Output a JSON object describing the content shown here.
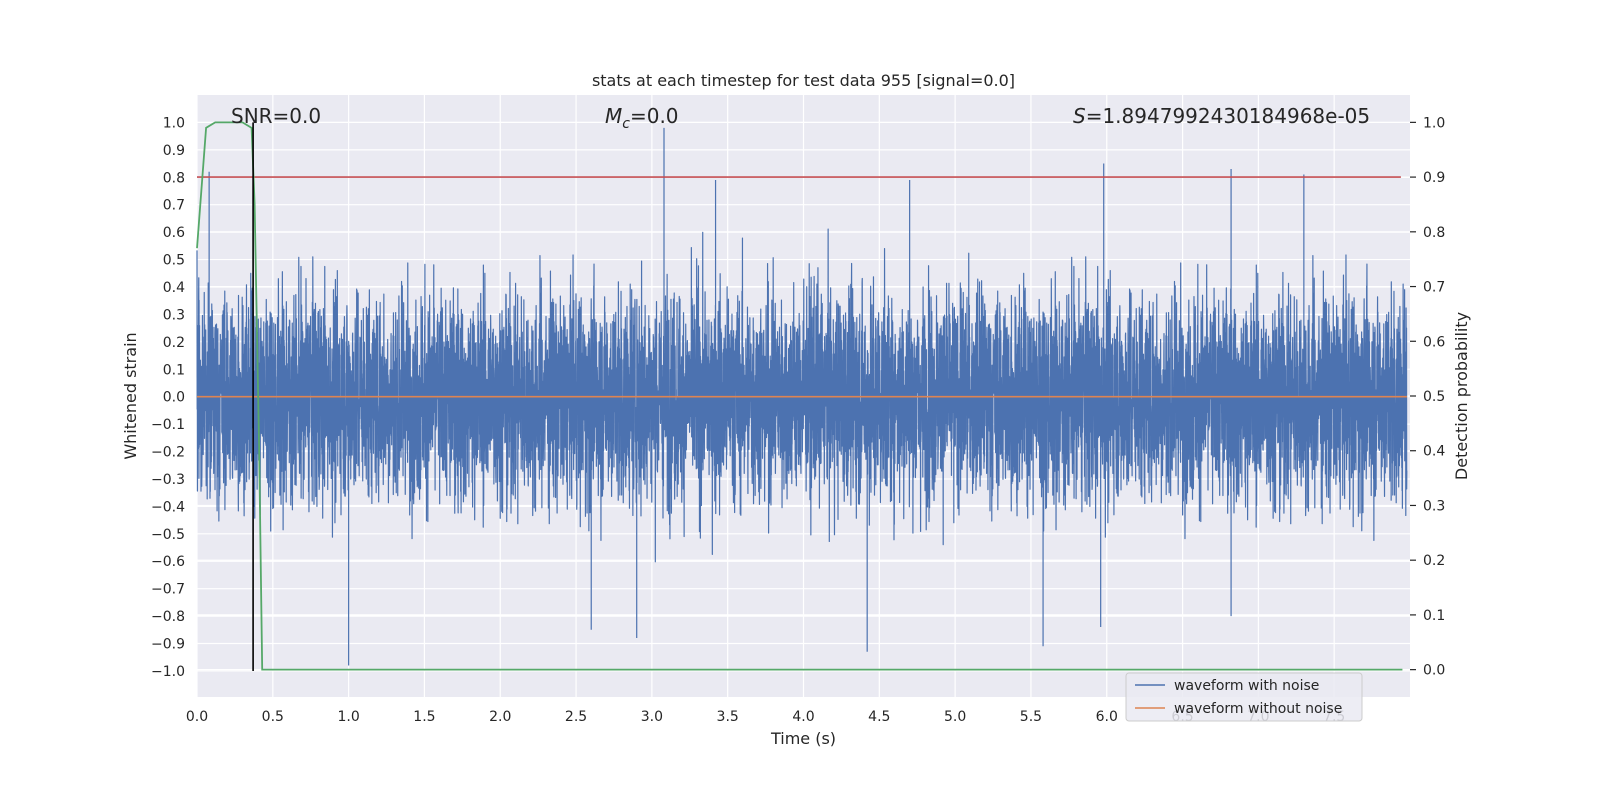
{
  "chart_data": {
    "type": "line",
    "title": "stats at each timestep for test data 955 [signal=0.0]",
    "xlabel": "Time (s)",
    "ylabel": "Whitened strain",
    "y2label": "Detection probability",
    "xlim": [
      0.0,
      8.0
    ],
    "ylim": [
      -1.095,
      1.1
    ],
    "y2lim": [
      -0.05,
      1.05
    ],
    "x_ticks": [
      0.0,
      0.5,
      1.0,
      1.5,
      2.0,
      2.5,
      3.0,
      3.5,
      4.0,
      4.5,
      5.0,
      5.5,
      6.0,
      6.5,
      7.0,
      7.5
    ],
    "x_tick_labels": [
      "0.0",
      "0.5",
      "1.0",
      "1.5",
      "2.0",
      "2.5",
      "3.0",
      "3.5",
      "4.0",
      "4.5",
      "5.0",
      "5.5",
      "6.0",
      "6.5",
      "7.0",
      "7.5"
    ],
    "y_ticks": [
      1.0,
      0.9,
      0.8,
      0.7,
      0.6,
      0.5,
      0.4,
      0.3,
      0.2,
      0.1,
      0.0,
      -0.1,
      -0.2,
      -0.3,
      -0.4,
      -0.5,
      -0.6,
      -0.7,
      -0.8,
      -0.9,
      -1.0
    ],
    "y_tick_labels": [
      "1.0",
      "0.9",
      "0.8",
      "0.7",
      "0.6",
      "0.5",
      "0.4",
      "0.3",
      "0.2",
      "0.1",
      "0.0",
      "−0.1",
      "−0.2",
      "−0.3",
      "−0.4",
      "−0.5",
      "−0.6",
      "−0.7",
      "−0.8",
      "−0.9",
      "−1.0"
    ],
    "y2_ticks": [
      1.0,
      0.9,
      0.8,
      0.7,
      0.6,
      0.5,
      0.4,
      0.3,
      0.2,
      0.1,
      0.0
    ],
    "y2_tick_labels": [
      "1.0",
      "0.9",
      "0.8",
      "0.7",
      "0.6",
      "0.5",
      "0.4",
      "0.3",
      "0.2",
      "0.1",
      "0.0"
    ],
    "grid": true,
    "legend_position": "bottom-right",
    "annotations": {
      "snr": "SNR=0.0",
      "mc_symbol": "M",
      "mc_subscript": "c",
      "mc_value": "=0.0",
      "s_symbol": "S",
      "s_value": "=1.8947992430184968e-05"
    },
    "series": [
      {
        "name": "waveform with noise",
        "color": "#4c72b0",
        "axis": "left",
        "description": "noise-like whitened strain, ~8192 samples, mostly within ±0.5",
        "peaks": [
          {
            "x": 0.08,
            "y": 0.82
          },
          {
            "x": 3.08,
            "y": 0.98
          },
          {
            "x": 3.42,
            "y": 0.79
          },
          {
            "x": 4.7,
            "y": 0.79
          },
          {
            "x": 5.98,
            "y": 0.85
          },
          {
            "x": 6.82,
            "y": 0.83
          },
          {
            "x": 7.3,
            "y": 0.81
          },
          {
            "x": 1.0,
            "y": -0.98
          },
          {
            "x": 4.42,
            "y": -0.93
          },
          {
            "x": 5.58,
            "y": -0.91
          },
          {
            "x": 2.9,
            "y": -0.88
          },
          {
            "x": 2.6,
            "y": -0.85
          },
          {
            "x": 6.82,
            "y": -0.8
          },
          {
            "x": 5.96,
            "y": -0.84
          }
        ]
      },
      {
        "name": "waveform without noise",
        "color": "#dd8452",
        "axis": "left",
        "constant": 0.0
      },
      {
        "name": "detection probability",
        "color": "#55a868",
        "axis": "right",
        "x": [
          0.0,
          0.06,
          0.12,
          0.2,
          0.3,
          0.36,
          0.38,
          0.41,
          0.43,
          0.5,
          0.6,
          7.95
        ],
        "y": [
          0.77,
          0.99,
          1.0,
          1.0,
          1.0,
          0.99,
          0.85,
          0.4,
          0.0,
          0.0,
          0.0,
          0.0
        ]
      },
      {
        "name": "threshold",
        "color": "#c44e52",
        "axis": "right",
        "constant": 0.9
      },
      {
        "name": "marker time",
        "color": "#000000",
        "axis": "left",
        "vertical_x": 0.37,
        "y_range": [
          -1.0,
          1.0
        ]
      }
    ],
    "legend_entries": [
      "waveform with noise",
      "waveform without noise"
    ]
  }
}
